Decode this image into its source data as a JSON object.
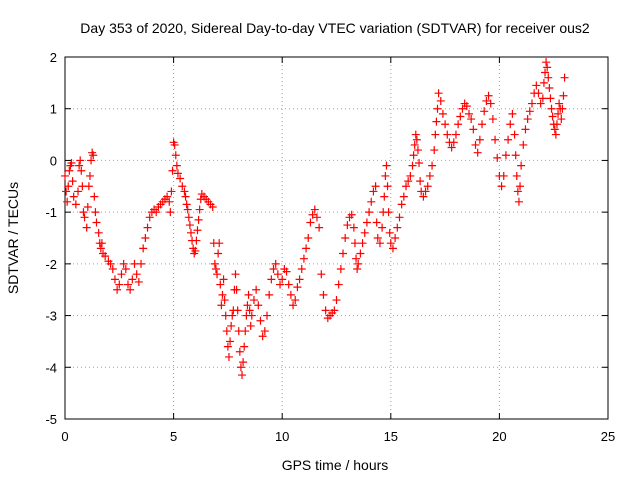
{
  "chart_data": {
    "type": "scatter",
    "title": "Day 353 of 2020, Sidereal Day-to-day VTEC variation (SDTVAR) for receiver ous2",
    "xlabel": "GPS time / hours",
    "ylabel": "SDTVAR / TECUs",
    "xlim": [
      0,
      25
    ],
    "ylim": [
      -5,
      2
    ],
    "xticks": [
      0,
      5,
      10,
      15,
      20,
      25
    ],
    "yticks": [
      -5,
      -4,
      -3,
      -2,
      -1,
      0,
      1,
      2
    ],
    "xtick_labels": [
      "0",
      "5",
      "10",
      "15",
      "20",
      "25"
    ],
    "ytick_labels": [
      "-5",
      "-4",
      "-3",
      "-2",
      "-1",
      "0",
      "1",
      "2"
    ],
    "grid": true,
    "marker": "+",
    "color": "#ff0000",
    "series": [
      {
        "name": "SDTVAR",
        "points": [
          [
            0.0,
            -0.3
          ],
          [
            0.05,
            -0.6
          ],
          [
            0.1,
            -0.8
          ],
          [
            0.15,
            -0.5
          ],
          [
            0.2,
            -0.2
          ],
          [
            0.25,
            -0.1
          ],
          [
            0.3,
            -0.05
          ],
          [
            0.35,
            -0.4
          ],
          [
            0.4,
            -0.7
          ],
          [
            0.5,
            -0.85
          ],
          [
            0.6,
            -0.6
          ],
          [
            0.65,
            -0.1
          ],
          [
            0.7,
            0.0
          ],
          [
            0.75,
            -0.2
          ],
          [
            0.8,
            -0.5
          ],
          [
            0.85,
            -1.0
          ],
          [
            0.9,
            -1.1
          ],
          [
            1.0,
            -1.3
          ],
          [
            1.05,
            -0.9
          ],
          [
            1.1,
            -0.5
          ],
          [
            1.15,
            -0.3
          ],
          [
            1.2,
            0.0
          ],
          [
            1.25,
            0.15
          ],
          [
            1.3,
            0.1
          ],
          [
            1.35,
            -0.7
          ],
          [
            1.4,
            -1.0
          ],
          [
            1.45,
            -1.2
          ],
          [
            1.55,
            -1.4
          ],
          [
            1.6,
            -1.6
          ],
          [
            1.65,
            -1.7
          ],
          [
            1.7,
            -1.6
          ],
          [
            1.75,
            -1.8
          ],
          [
            1.85,
            -1.85
          ],
          [
            2.0,
            -1.95
          ],
          [
            2.1,
            -2.0
          ],
          [
            2.2,
            -2.1
          ],
          [
            2.3,
            -2.3
          ],
          [
            2.4,
            -2.5
          ],
          [
            2.5,
            -2.4
          ],
          [
            2.6,
            -2.2
          ],
          [
            2.7,
            -2.0
          ],
          [
            2.8,
            -2.1
          ],
          [
            2.9,
            -2.4
          ],
          [
            3.0,
            -2.5
          ],
          [
            3.1,
            -2.3
          ],
          [
            3.2,
            -2.0
          ],
          [
            3.3,
            -2.2
          ],
          [
            3.4,
            -2.35
          ],
          [
            3.5,
            -2.0
          ],
          [
            3.6,
            -1.7
          ],
          [
            3.7,
            -1.5
          ],
          [
            3.8,
            -1.3
          ],
          [
            3.9,
            -1.1
          ],
          [
            4.0,
            -1.0
          ],
          [
            4.1,
            -0.95
          ],
          [
            4.2,
            -1.0
          ],
          [
            4.3,
            -0.9
          ],
          [
            4.4,
            -0.85
          ],
          [
            4.5,
            -0.8
          ],
          [
            4.6,
            -0.75
          ],
          [
            4.7,
            -0.7
          ],
          [
            4.8,
            -0.8
          ],
          [
            4.85,
            -1.0
          ],
          [
            4.9,
            -0.6
          ],
          [
            4.95,
            -0.2
          ],
          [
            5.0,
            0.35
          ],
          [
            5.05,
            0.3
          ],
          [
            5.1,
            0.1
          ],
          [
            5.15,
            -0.1
          ],
          [
            5.2,
            -0.25
          ],
          [
            5.3,
            -0.35
          ],
          [
            5.4,
            -0.5
          ],
          [
            5.5,
            -0.6
          ],
          [
            5.55,
            -0.7
          ],
          [
            5.6,
            -0.85
          ],
          [
            5.65,
            -0.95
          ],
          [
            5.7,
            -1.1
          ],
          [
            5.75,
            -1.25
          ],
          [
            5.8,
            -1.4
          ],
          [
            5.85,
            -1.55
          ],
          [
            5.9,
            -1.7
          ],
          [
            5.95,
            -1.8
          ],
          [
            6.0,
            -1.75
          ],
          [
            6.05,
            -1.55
          ],
          [
            6.1,
            -1.35
          ],
          [
            6.15,
            -1.15
          ],
          [
            6.2,
            -0.95
          ],
          [
            6.25,
            -0.75
          ],
          [
            6.3,
            -0.65
          ],
          [
            6.4,
            -0.7
          ],
          [
            6.5,
            -0.75
          ],
          [
            6.6,
            -0.8
          ],
          [
            6.7,
            -0.85
          ],
          [
            6.8,
            -0.9
          ],
          [
            6.85,
            -1.6
          ],
          [
            6.9,
            -2.0
          ],
          [
            6.95,
            -2.1
          ],
          [
            7.0,
            -2.2
          ],
          [
            7.05,
            -1.8
          ],
          [
            7.1,
            -1.6
          ],
          [
            7.15,
            -2.4
          ],
          [
            7.2,
            -2.8
          ],
          [
            7.25,
            -2.6
          ],
          [
            7.3,
            -2.3
          ],
          [
            7.35,
            -2.7
          ],
          [
            7.4,
            -3.0
          ],
          [
            7.45,
            -3.3
          ],
          [
            7.5,
            -3.6
          ],
          [
            7.55,
            -3.8
          ],
          [
            7.6,
            -3.5
          ],
          [
            7.65,
            -3.2
          ],
          [
            7.7,
            -3.0
          ],
          [
            7.75,
            -2.9
          ],
          [
            7.8,
            -2.5
          ],
          [
            7.85,
            -2.2
          ],
          [
            7.9,
            -2.5
          ],
          [
            7.95,
            -2.9
          ],
          [
            8.0,
            -3.3
          ],
          [
            8.05,
            -3.7
          ],
          [
            8.1,
            -4.0
          ],
          [
            8.15,
            -4.15
          ],
          [
            8.2,
            -3.9
          ],
          [
            8.25,
            -3.6
          ],
          [
            8.3,
            -3.3
          ],
          [
            8.35,
            -3.0
          ],
          [
            8.4,
            -2.8
          ],
          [
            8.45,
            -2.6
          ],
          [
            8.5,
            -2.9
          ],
          [
            8.55,
            -3.2
          ],
          [
            8.6,
            -3.0
          ],
          [
            8.7,
            -2.7
          ],
          [
            8.8,
            -2.5
          ],
          [
            8.9,
            -2.8
          ],
          [
            9.0,
            -3.1
          ],
          [
            9.1,
            -3.4
          ],
          [
            9.2,
            -3.3
          ],
          [
            9.3,
            -3.0
          ],
          [
            9.4,
            -2.6
          ],
          [
            9.5,
            -2.3
          ],
          [
            9.6,
            -2.1
          ],
          [
            9.7,
            -2.0
          ],
          [
            9.8,
            -2.2
          ],
          [
            9.9,
            -2.4
          ],
          [
            10.0,
            -2.3
          ],
          [
            10.1,
            -2.1
          ],
          [
            10.2,
            -2.15
          ],
          [
            10.3,
            -2.4
          ],
          [
            10.4,
            -2.6
          ],
          [
            10.5,
            -2.8
          ],
          [
            10.6,
            -2.7
          ],
          [
            10.7,
            -2.45
          ],
          [
            10.8,
            -2.3
          ],
          [
            10.9,
            -2.1
          ],
          [
            11.0,
            -1.9
          ],
          [
            11.1,
            -1.7
          ],
          [
            11.2,
            -1.5
          ],
          [
            11.3,
            -1.2
          ],
          [
            11.4,
            -1.05
          ],
          [
            11.5,
            -0.95
          ],
          [
            11.6,
            -1.1
          ],
          [
            11.7,
            -1.3
          ],
          [
            11.8,
            -2.2
          ],
          [
            11.9,
            -2.6
          ],
          [
            12.0,
            -2.9
          ],
          [
            12.1,
            -3.05
          ],
          [
            12.2,
            -3.0
          ],
          [
            12.3,
            -2.95
          ],
          [
            12.4,
            -2.9
          ],
          [
            12.5,
            -2.7
          ],
          [
            12.6,
            -2.4
          ],
          [
            12.7,
            -2.1
          ],
          [
            12.8,
            -1.8
          ],
          [
            12.9,
            -1.5
          ],
          [
            13.0,
            -1.25
          ],
          [
            13.1,
            -1.1
          ],
          [
            13.2,
            -1.05
          ],
          [
            13.3,
            -1.3
          ],
          [
            13.35,
            -1.6
          ],
          [
            13.4,
            -1.9
          ],
          [
            13.45,
            -2.1
          ],
          [
            13.5,
            -2.0
          ],
          [
            13.6,
            -1.8
          ],
          [
            13.7,
            -1.6
          ],
          [
            13.8,
            -1.4
          ],
          [
            13.9,
            -1.2
          ],
          [
            14.0,
            -1.0
          ],
          [
            14.1,
            -0.8
          ],
          [
            14.2,
            -0.6
          ],
          [
            14.3,
            -0.5
          ],
          [
            14.35,
            -1.2
          ],
          [
            14.4,
            -1.5
          ],
          [
            14.5,
            -1.6
          ],
          [
            14.6,
            -1.3
          ],
          [
            14.65,
            -1.0
          ],
          [
            14.7,
            -0.7
          ],
          [
            14.75,
            -0.3
          ],
          [
            14.8,
            -0.1
          ],
          [
            14.85,
            -0.5
          ],
          [
            14.9,
            -1.0
          ],
          [
            14.95,
            -1.4
          ],
          [
            15.0,
            -1.6
          ],
          [
            15.1,
            -1.7
          ],
          [
            15.2,
            -1.5
          ],
          [
            15.3,
            -1.3
          ],
          [
            15.4,
            -1.1
          ],
          [
            15.5,
            -0.85
          ],
          [
            15.6,
            -0.7
          ],
          [
            15.7,
            -0.5
          ],
          [
            15.8,
            -0.4
          ],
          [
            15.9,
            -0.3
          ],
          [
            16.0,
            -0.1
          ],
          [
            16.05,
            0.1
          ],
          [
            16.1,
            0.3
          ],
          [
            16.15,
            0.5
          ],
          [
            16.2,
            0.4
          ],
          [
            16.25,
            0.2
          ],
          [
            16.3,
            -0.05
          ],
          [
            16.35,
            -0.4
          ],
          [
            16.4,
            -0.6
          ],
          [
            16.5,
            -0.7
          ],
          [
            16.6,
            -0.6
          ],
          [
            16.7,
            -0.5
          ],
          [
            16.8,
            -0.3
          ],
          [
            16.9,
            -0.1
          ],
          [
            17.0,
            0.2
          ],
          [
            17.05,
            0.5
          ],
          [
            17.1,
            0.75
          ],
          [
            17.15,
            1.0
          ],
          [
            17.2,
            1.3
          ],
          [
            17.3,
            1.15
          ],
          [
            17.4,
            0.9
          ],
          [
            17.5,
            0.7
          ],
          [
            17.6,
            0.5
          ],
          [
            17.7,
            0.35
          ],
          [
            17.8,
            0.25
          ],
          [
            17.9,
            0.35
          ],
          [
            18.0,
            0.5
          ],
          [
            18.1,
            0.7
          ],
          [
            18.2,
            0.85
          ],
          [
            18.3,
            1.0
          ],
          [
            18.4,
            1.1
          ],
          [
            18.5,
            1.05
          ],
          [
            18.6,
            0.9
          ],
          [
            18.7,
            0.8
          ],
          [
            18.8,
            0.6
          ],
          [
            18.9,
            0.3
          ],
          [
            19.0,
            0.15
          ],
          [
            19.1,
            0.4
          ],
          [
            19.2,
            0.7
          ],
          [
            19.3,
            0.95
          ],
          [
            19.4,
            1.15
          ],
          [
            19.5,
            1.25
          ],
          [
            19.6,
            1.1
          ],
          [
            19.7,
            0.8
          ],
          [
            19.8,
            0.4
          ],
          [
            19.9,
            0.05
          ],
          [
            20.0,
            -0.3
          ],
          [
            20.1,
            -0.5
          ],
          [
            20.2,
            -0.3
          ],
          [
            20.3,
            0.1
          ],
          [
            20.4,
            0.4
          ],
          [
            20.5,
            0.7
          ],
          [
            20.6,
            0.9
          ],
          [
            20.7,
            0.5
          ],
          [
            20.75,
            0.1
          ],
          [
            20.8,
            -0.3
          ],
          [
            20.85,
            -0.6
          ],
          [
            20.9,
            -0.8
          ],
          [
            20.95,
            -0.5
          ],
          [
            21.0,
            -0.1
          ],
          [
            21.1,
            0.3
          ],
          [
            21.2,
            0.6
          ],
          [
            21.3,
            0.8
          ],
          [
            21.4,
            0.95
          ],
          [
            21.5,
            1.1
          ],
          [
            21.6,
            1.3
          ],
          [
            21.7,
            1.45
          ],
          [
            21.8,
            1.3
          ],
          [
            21.9,
            1.1
          ],
          [
            22.0,
            1.2
          ],
          [
            22.05,
            1.5
          ],
          [
            22.1,
            1.7
          ],
          [
            22.15,
            1.9
          ],
          [
            22.2,
            1.8
          ],
          [
            22.25,
            1.6
          ],
          [
            22.3,
            1.4
          ],
          [
            22.35,
            1.2
          ],
          [
            22.4,
            1.0
          ],
          [
            22.45,
            0.85
          ],
          [
            22.5,
            0.7
          ],
          [
            22.55,
            0.6
          ],
          [
            22.6,
            0.5
          ],
          [
            22.65,
            0.7
          ],
          [
            22.7,
            0.9
          ],
          [
            22.75,
            1.1
          ],
          [
            22.8,
            1.0
          ],
          [
            22.85,
            0.8
          ],
          [
            22.9,
            1.0
          ],
          [
            22.95,
            1.25
          ],
          [
            23.0,
            1.6
          ]
        ]
      }
    ]
  }
}
